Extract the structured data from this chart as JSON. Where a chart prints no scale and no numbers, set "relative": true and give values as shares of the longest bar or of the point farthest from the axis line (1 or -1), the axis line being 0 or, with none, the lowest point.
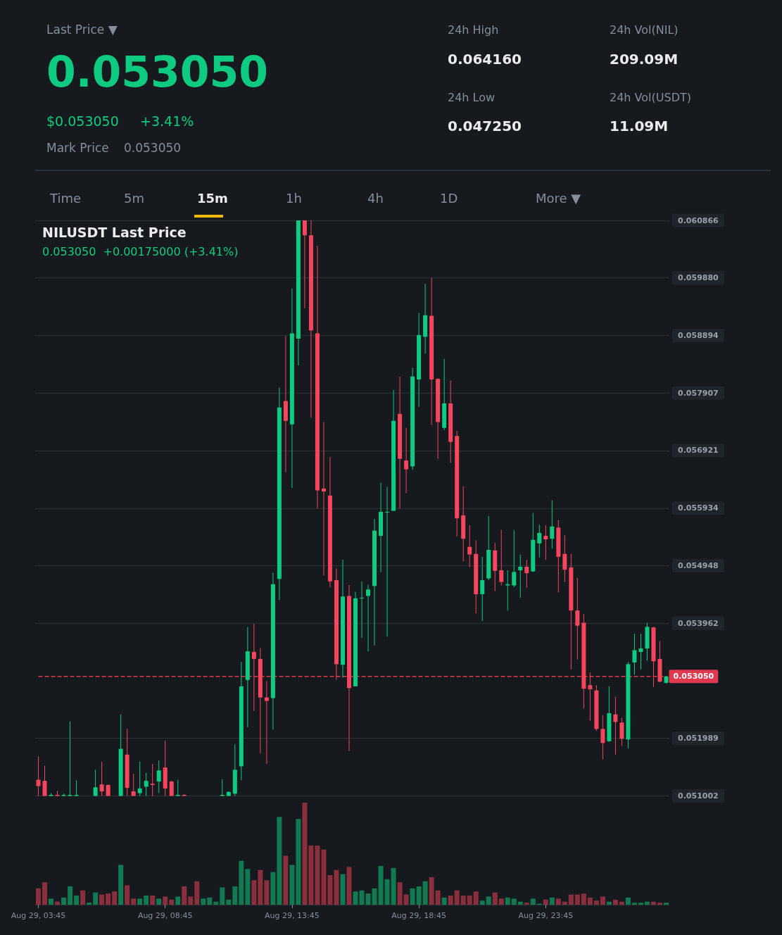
{
  "chart_data": [
    {
      "type": "other",
      "annotations": [
        "Last Price ▼",
        "0.053050",
        "$0.053050",
        "+3.41%",
        "Mark Price",
        "0.053050",
        "24h High",
        "0.064160",
        "24h Low",
        "0.047250",
        "24h Vol(NIL)",
        "209.09M",
        "24h Vol(USDT)",
        "11.09M",
        "Time",
        "5m",
        "15m",
        "1h",
        "4h",
        "1D",
        "More ▼"
      ]
    },
    {
      "type": "candlestick",
      "title": "NILUSDT Last Price",
      "subtitle": "0.053050  +0.00175000 (+3.41%)",
      "categories": [
        null,
        null,
        null,
        null,
        null,
        null,
        null,
        null,
        null,
        null,
        null,
        null,
        null,
        null,
        null,
        null,
        null,
        null,
        null,
        null,
        null,
        null,
        null,
        null,
        null,
        null,
        null,
        null,
        null,
        null,
        null,
        null,
        null,
        null,
        null,
        null,
        null,
        null,
        null,
        null,
        null,
        null,
        null,
        null,
        null,
        null,
        null,
        null,
        null,
        null,
        null,
        null,
        null,
        null,
        null,
        null,
        null,
        null,
        null,
        null,
        null,
        null,
        null,
        null,
        null,
        null,
        null,
        null,
        null,
        null,
        null,
        null,
        null,
        null,
        null,
        null,
        null,
        null,
        null,
        null,
        null,
        null,
        null,
        null,
        null,
        null,
        null,
        null,
        null,
        null,
        null,
        null,
        null,
        null,
        null,
        null,
        null,
        null,
        null,
        null
      ],
      "ohlc": [
        [
          0.05128,
          0.05168,
          0.051002,
          0.05117
        ],
        [
          0.05126,
          0.05152,
          0.051002,
          0.051002
        ],
        [
          0.051002,
          0.05105,
          0.051002,
          0.05102
        ],
        [
          0.05102,
          0.05109,
          0.051002,
          0.051002
        ],
        [
          0.051002,
          0.05104,
          0.051002,
          0.05102
        ],
        [
          0.051002,
          0.05228,
          0.051002,
          0.05102
        ],
        [
          0.051002,
          0.05127,
          0.051002,
          0.05102
        ],
        null,
        null,
        [
          0.051002,
          0.05145,
          0.051002,
          0.05115
        ],
        [
          0.0512,
          0.05159,
          0.051002,
          0.05108
        ],
        [
          0.05119,
          0.0512,
          0.051002,
          0.051002
        ],
        null,
        [
          0.051002,
          0.0524,
          0.051002,
          0.05181
        ],
        [
          0.05171,
          0.05215,
          0.051002,
          0.05114
        ],
        [
          0.05108,
          0.05138,
          0.051002,
          0.051002
        ],
        [
          0.05105,
          0.05159,
          0.051002,
          0.05113
        ],
        [
          0.05116,
          0.0514,
          0.051002,
          0.05126
        ],
        [
          0.05121,
          0.05155,
          0.051002,
          0.05119
        ],
        [
          0.05125,
          0.05161,
          0.05105,
          0.05144
        ],
        [
          0.05149,
          0.05195,
          0.051002,
          0.05113
        ],
        [
          0.05125,
          0.05126,
          0.051002,
          0.051002
        ],
        [
          0.051002,
          0.05128,
          0.051002,
          0.05102
        ],
        [
          0.05102,
          0.05103,
          0.051002,
          0.051002
        ],
        null,
        null,
        null,
        null,
        null,
        [
          0.051002,
          0.05129,
          0.051002,
          0.05102
        ],
        [
          0.051002,
          0.05108,
          0.051002,
          0.05107
        ],
        [
          0.05104,
          0.05189,
          0.051002,
          0.05145
        ],
        [
          0.05151,
          0.0533,
          0.05127,
          0.05288
        ],
        [
          0.05299,
          0.0539,
          0.05218,
          0.05348
        ],
        [
          0.05347,
          0.05395,
          0.05246,
          0.05335
        ],
        [
          0.05335,
          0.05354,
          0.05173,
          0.05269
        ],
        [
          0.05269,
          0.05297,
          0.05155,
          0.05263
        ],
        [
          0.05268,
          0.05483,
          0.05214,
          0.05463
        ],
        [
          0.05472,
          0.058,
          0.05436,
          0.05766
        ],
        [
          0.05777,
          0.05888,
          0.05655,
          0.05743
        ],
        [
          0.05737,
          0.0597,
          0.05628,
          0.05893
        ],
        [
          0.05884,
          0.060866,
          0.05838,
          0.060866
        ],
        [
          0.060866,
          0.060866,
          0.05936,
          0.06061
        ],
        [
          0.06061,
          0.060866,
          0.05748,
          0.05898
        ],
        [
          0.05893,
          0.06043,
          0.05593,
          0.05624
        ],
        [
          0.05627,
          0.05741,
          0.05478,
          0.05622
        ],
        [
          0.05615,
          0.05681,
          0.05458,
          0.05468
        ],
        [
          0.0547,
          0.0549,
          0.05299,
          0.05326
        ],
        [
          0.05325,
          0.05505,
          0.05303,
          0.05442
        ],
        [
          0.05443,
          0.05462,
          0.05177,
          0.05285
        ],
        [
          0.05288,
          0.0545,
          0.05288,
          0.05439
        ],
        [
          0.05439,
          0.05468,
          0.05371,
          0.0544
        ],
        [
          0.05443,
          0.05462,
          0.05348,
          0.05454
        ],
        [
          0.0546,
          0.05575,
          0.05358,
          0.05555
        ],
        [
          0.05546,
          0.05637,
          0.05484,
          0.05587
        ],
        [
          0.05586,
          0.0563,
          0.05373,
          0.05587
        ],
        [
          0.05589,
          0.05796,
          0.05589,
          0.05743
        ],
        [
          0.05755,
          0.05819,
          0.05593,
          0.05678
        ],
        [
          0.05675,
          0.05731,
          0.05619,
          0.0566
        ],
        [
          0.05665,
          0.05834,
          0.05659,
          0.05819
        ],
        [
          0.05814,
          0.05928,
          0.05767,
          0.0589
        ],
        [
          0.05887,
          0.05978,
          0.05858,
          0.05924
        ],
        [
          0.05923,
          0.05988,
          0.05736,
          0.05814
        ],
        [
          0.05815,
          0.05816,
          0.05678,
          0.05741
        ],
        [
          0.05731,
          0.05849,
          0.05727,
          0.05773
        ],
        [
          0.05773,
          0.05812,
          0.05671,
          0.05707
        ],
        [
          0.05717,
          0.05726,
          0.05545,
          0.05576
        ],
        [
          0.05581,
          0.05631,
          0.05502,
          0.05541
        ],
        [
          0.05527,
          0.05564,
          0.05492,
          0.05514
        ],
        [
          0.05515,
          0.05538,
          0.05413,
          0.05446
        ],
        [
          0.05446,
          0.0551,
          0.054,
          0.0547
        ],
        [
          0.05473,
          0.0558,
          0.0547,
          0.05522
        ],
        [
          0.05521,
          0.05534,
          0.05451,
          0.05486
        ],
        [
          0.05487,
          0.05556,
          0.05461,
          0.05467
        ],
        [
          0.05461,
          0.05487,
          0.05418,
          0.05463
        ],
        [
          0.05461,
          0.05556,
          0.05458,
          0.05484
        ],
        [
          0.05487,
          0.05514,
          0.0544,
          0.05493
        ],
        [
          0.05493,
          0.05505,
          0.05457,
          0.05482
        ],
        [
          0.05485,
          0.05585,
          0.05484,
          0.05539
        ],
        [
          0.05533,
          0.05565,
          0.05509,
          0.05551
        ],
        [
          0.05546,
          0.05564,
          0.05505,
          0.0554
        ],
        [
          0.05541,
          0.05607,
          0.05524,
          0.05562
        ],
        [
          0.0556,
          0.05573,
          0.05449,
          0.0551
        ],
        [
          0.05515,
          0.05547,
          0.05467,
          0.05488
        ],
        [
          0.05492,
          0.05515,
          0.05317,
          0.05418
        ],
        [
          0.05418,
          0.05474,
          0.05334,
          0.05392
        ],
        [
          0.05397,
          0.05412,
          0.0525,
          0.05284
        ],
        [
          0.0529,
          0.05312,
          0.05229,
          0.05283
        ],
        [
          0.05281,
          0.0529,
          0.05212,
          0.05215
        ],
        [
          0.05215,
          0.05239,
          0.05163,
          0.05191
        ],
        [
          0.05194,
          0.05288,
          0.05193,
          0.05242
        ],
        [
          0.0524,
          0.0527,
          0.05171,
          0.05227
        ],
        [
          0.05226,
          0.05234,
          0.05186,
          0.05198
        ],
        [
          0.05197,
          0.0533,
          0.05182,
          0.05326
        ],
        [
          0.05329,
          0.05378,
          0.05308,
          0.0535
        ],
        [
          0.05347,
          0.05378,
          0.05317,
          0.05353
        ],
        [
          0.05353,
          0.05397,
          0.05332,
          0.0539
        ],
        [
          0.05389,
          0.0539,
          0.05287,
          0.05331
        ],
        [
          0.05335,
          0.05366,
          0.05295,
          0.05296
        ],
        [
          0.05294,
          0.05306,
          0.05293,
          0.05305
        ]
      ],
      "colors": [
        "#f6465d",
        "#f6465d",
        "#0ecb81",
        "#f6465d",
        "#0ecb81",
        "#0ecb81",
        "#0ecb81",
        null,
        null,
        "#0ecb81",
        "#f6465d",
        "#f6465d",
        null,
        "#0ecb81",
        "#f6465d",
        "#f6465d",
        "#0ecb81",
        "#0ecb81",
        "#f6465d",
        "#0ecb81",
        "#f6465d",
        "#f6465d",
        "#0ecb81",
        "#f6465d",
        null,
        null,
        null,
        null,
        null,
        "#0ecb81",
        "#0ecb81",
        "#0ecb81",
        "#0ecb81",
        "#0ecb81",
        "#f6465d",
        "#f6465d",
        "#f6465d",
        "#0ecb81",
        "#0ecb81",
        "#f6465d",
        "#0ecb81",
        "#0ecb81",
        "#f6465d",
        "#f6465d",
        "#f6465d",
        "#f6465d",
        "#f6465d",
        "#f6465d",
        "#0ecb81",
        "#f6465d",
        "#0ecb81",
        "#0ecb81",
        "#0ecb81",
        "#0ecb81",
        "#0ecb81",
        "#0ecb81",
        "#0ecb81",
        "#f6465d",
        "#f6465d",
        "#0ecb81",
        "#0ecb81",
        "#0ecb81",
        "#f6465d",
        "#f6465d",
        "#0ecb81",
        "#f6465d",
        "#f6465d",
        "#f6465d",
        "#f6465d",
        "#f6465d",
        "#0ecb81",
        "#0ecb81",
        "#f6465d",
        "#f6465d",
        "#0ecb81",
        "#0ecb81",
        "#0ecb81",
        "#f6465d",
        "#0ecb81",
        "#0ecb81",
        "#f6465d",
        "#0ecb81",
        "#f6465d",
        "#f6465d",
        "#f6465d",
        "#f6465d",
        "#f6465d",
        "#f6465d",
        "#f6465d",
        "#f6465d",
        "#0ecb81",
        "#f6465d",
        "#f6465d",
        "#0ecb81",
        "#0ecb81",
        "#0ecb81",
        "#0ecb81",
        "#f6465d",
        "#f6465d",
        "#0ecb81"
      ],
      "ylim": [
        0.051002,
        0.060866
      ],
      "yticks": [
        {
          "value": 0.051002,
          "label": "0.051002"
        },
        {
          "value": 0.051989,
          "label": "0.051989"
        },
        {
          "value": 0.053962,
          "label": "0.053962"
        },
        {
          "value": 0.054948,
          "label": "0.054948"
        },
        {
          "value": 0.055934,
          "label": "0.055934"
        },
        {
          "value": 0.056921,
          "label": "0.056921"
        },
        {
          "value": 0.057907,
          "label": "0.057907"
        },
        {
          "value": 0.058894,
          "label": "0.058894"
        },
        {
          "value": 0.05988,
          "label": "0.059880"
        },
        {
          "value": 0.060866,
          "label": "0.060866"
        }
      ],
      "ref_lines": [
        {
          "axis": "y",
          "value": 0.05305,
          "label": "0.053050",
          "color": "#e0394f",
          "line_style": "dashed"
        }
      ],
      "grid": "y",
      "tick_labels": "y"
    },
    {
      "type": "bar",
      "relative": true,
      "categories": [
        "Aug 29, 03:45",
        null,
        null,
        null,
        null,
        null,
        null,
        null,
        null,
        null,
        null,
        null,
        null,
        null,
        null,
        null,
        null,
        null,
        null,
        null,
        "Aug 29, 08:45",
        null,
        null,
        null,
        null,
        null,
        null,
        null,
        null,
        null,
        null,
        null,
        null,
        null,
        null,
        null,
        null,
        null,
        null,
        null,
        "Aug 29, 13:45",
        null,
        null,
        null,
        null,
        null,
        null,
        null,
        null,
        null,
        null,
        null,
        null,
        null,
        null,
        null,
        null,
        null,
        null,
        null,
        "Aug 29, 18:45",
        null,
        null,
        null,
        null,
        null,
        null,
        null,
        null,
        null,
        null,
        null,
        null,
        null,
        null,
        null,
        null,
        null,
        null,
        null,
        "Aug 29, 23:45",
        null,
        null,
        null,
        null,
        null,
        null,
        null,
        null,
        null,
        null,
        null,
        null,
        null,
        null,
        null,
        null,
        null,
        null,
        null
      ],
      "values": [
        0.16,
        0.22,
        0.06,
        0.03,
        0.07,
        0.18,
        0.09,
        0.14,
        0.02,
        0.12,
        0.1,
        0.11,
        0.13,
        0.39,
        0.19,
        0.06,
        0.06,
        0.09,
        0.09,
        0.06,
        0.08,
        0.05,
        0.08,
        0.18,
        0.08,
        0.23,
        0.06,
        0.07,
        0.03,
        0.17,
        0.05,
        0.18,
        0.43,
        0.35,
        0.24,
        0.34,
        0.24,
        0.32,
        0.86,
        0.48,
        0.39,
        0.84,
        1,
        0.58,
        0.58,
        0.54,
        0.29,
        0.34,
        0.3,
        0.37,
        0.13,
        0.14,
        0.11,
        0.16,
        0.38,
        0.25,
        0.36,
        0.22,
        0.1,
        0.16,
        0.18,
        0.23,
        0.27,
        0.14,
        0.07,
        0.09,
        0.14,
        0.09,
        0.09,
        0.13,
        0.04,
        0.08,
        0.12,
        0.06,
        0.07,
        0.06,
        0.03,
        0.02,
        0.06,
        0.01,
        0.05,
        0.07,
        0.06,
        0.03,
        0.1,
        0.1,
        0.11,
        0.07,
        0.04,
        0.08,
        0.03,
        0.05,
        0.03,
        0.07,
        0.02,
        0.02,
        0.03,
        0.03,
        0.02,
        0.02
      ],
      "colors": [
        "#8c2f3d",
        "#8c2f3d",
        "#117a52",
        "#8c2f3d",
        "#117a52",
        "#117a52",
        "#117a52",
        "#8c2f3d",
        "#117a52",
        "#117a52",
        "#8c2f3d",
        "#8c2f3d",
        "#8c2f3d",
        "#117a52",
        "#8c2f3d",
        "#8c2f3d",
        "#117a52",
        "#117a52",
        "#8c2f3d",
        "#117a52",
        "#8c2f3d",
        "#8c2f3d",
        "#117a52",
        "#8c2f3d",
        "#8c2f3d",
        "#8c2f3d",
        "#117a52",
        "#117a52",
        "#117a52",
        "#117a52",
        "#117a52",
        "#117a52",
        "#117a52",
        "#117a52",
        "#8c2f3d",
        "#8c2f3d",
        "#8c2f3d",
        "#117a52",
        "#117a52",
        "#8c2f3d",
        "#117a52",
        "#117a52",
        "#8c2f3d",
        "#8c2f3d",
        "#8c2f3d",
        "#8c2f3d",
        "#8c2f3d",
        "#8c2f3d",
        "#117a52",
        "#8c2f3d",
        "#117a52",
        "#117a52",
        "#117a52",
        "#117a52",
        "#117a52",
        "#117a52",
        "#117a52",
        "#8c2f3d",
        "#8c2f3d",
        "#117a52",
        "#117a52",
        "#117a52",
        "#8c2f3d",
        "#8c2f3d",
        "#117a52",
        "#8c2f3d",
        "#8c2f3d",
        "#8c2f3d",
        "#8c2f3d",
        "#8c2f3d",
        "#117a52",
        "#117a52",
        "#8c2f3d",
        "#8c2f3d",
        "#117a52",
        "#117a52",
        "#117a52",
        "#8c2f3d",
        "#117a52",
        "#117a52",
        "#8c2f3d",
        "#117a52",
        "#8c2f3d",
        "#8c2f3d",
        "#8c2f3d",
        "#8c2f3d",
        "#8c2f3d",
        "#8c2f3d",
        "#8c2f3d",
        "#8c2f3d",
        "#117a52",
        "#8c2f3d",
        "#8c2f3d",
        "#117a52",
        "#117a52",
        "#117a52",
        "#117a52",
        "#8c2f3d",
        "#8c2f3d",
        "#117a52"
      ],
      "tick_labels": "x"
    }
  ]
}
